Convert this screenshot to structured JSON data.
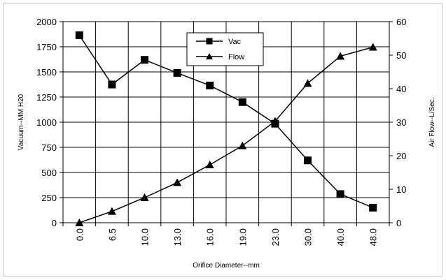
{
  "chart_data": {
    "type": "line",
    "title": "",
    "xlabel": "Orifice Diameter--mm",
    "ylabel": "Vacuum--MM H20",
    "y2label": "Air Flow--L/Sec.",
    "categories": [
      "0.0",
      "6.5",
      "10.0",
      "13.0",
      "16.0",
      "19.0",
      "23.0",
      "30.0",
      "40.0",
      "48.0"
    ],
    "ylim": [
      0,
      2000
    ],
    "y2lim": [
      0,
      60
    ],
    "yticks": [
      "0",
      "250",
      "500",
      "750",
      "1000",
      "1250",
      "1500",
      "1750",
      "2000"
    ],
    "y2ticks": [
      "0",
      "10",
      "20",
      "30",
      "40",
      "50",
      "60"
    ],
    "grid": true,
    "legend_position": "top-center",
    "series": [
      {
        "name": "Vac",
        "axis": "left",
        "marker": "square",
        "color": "#000000",
        "values": [
          1865,
          1375,
          1620,
          1490,
          1365,
          1200,
          985,
          620,
          285,
          150
        ]
      },
      {
        "name": "Flow",
        "axis": "right",
        "marker": "triangle",
        "color": "#000000",
        "values": [
          0,
          3.4,
          7.5,
          12,
          17.3,
          23,
          30.3,
          41.6,
          49.7,
          52.4
        ]
      }
    ]
  }
}
